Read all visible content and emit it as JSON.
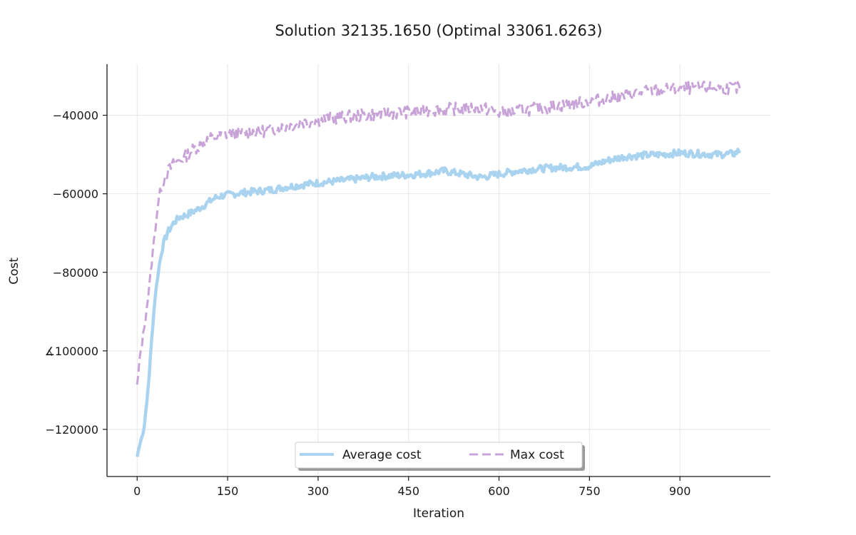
{
  "chart_data": {
    "type": "line",
    "title": "Solution 32135.1650 (Optimal 33061.6263)",
    "xlabel": "Iteration",
    "ylabel": "Cost",
    "xlim": [
      -50,
      1050
    ],
    "ylim": [
      -132000,
      -27000
    ],
    "xticks": [
      0,
      150,
      300,
      450,
      600,
      750,
      900
    ],
    "yticks": [
      -120000,
      -100000,
      -80000,
      -60000,
      -40000
    ],
    "ytick_labels": [
      "−120000",
      "∡100000",
      "−80000",
      "−60000",
      "−40000"
    ],
    "grid": true,
    "legend_position": "bottom-center",
    "colors": {
      "average": "#a9d3ef",
      "max": "#c8a3d8"
    },
    "series": [
      {
        "name": "Average cost",
        "style": "solid",
        "x": [
          0,
          5,
          10,
          15,
          20,
          25,
          30,
          35,
          40,
          45,
          50,
          60,
          70,
          80,
          90,
          100,
          110,
          120,
          130,
          140,
          150,
          170,
          190,
          210,
          230,
          250,
          270,
          300,
          330,
          360,
          390,
          420,
          450,
          480,
          510,
          540,
          570,
          600,
          630,
          660,
          690,
          720,
          750,
          780,
          810,
          840,
          870,
          900,
          930,
          960,
          990,
          1000
        ],
        "y": [
          -127000,
          -123000,
          -121000,
          -115000,
          -106000,
          -95000,
          -86000,
          -80000,
          -75000,
          -72000,
          -70000,
          -67500,
          -66000,
          -65500,
          -64800,
          -64000,
          -63000,
          -62000,
          -61000,
          -60500,
          -60300,
          -59800,
          -59500,
          -59200,
          -58800,
          -58200,
          -57800,
          -57200,
          -56800,
          -56300,
          -55700,
          -55400,
          -55200,
          -54800,
          -54200,
          -55000,
          -55800,
          -55000,
          -54200,
          -53700,
          -53400,
          -53200,
          -53000,
          -51500,
          -50500,
          -50200,
          -50000,
          -49600,
          -49800,
          -50000,
          -49800,
          -48800
        ]
      },
      {
        "name": "Max cost",
        "style": "dashed",
        "x": [
          0,
          5,
          10,
          15,
          20,
          25,
          30,
          35,
          40,
          45,
          50,
          60,
          70,
          80,
          90,
          100,
          110,
          120,
          130,
          140,
          150,
          170,
          190,
          210,
          230,
          250,
          270,
          300,
          330,
          360,
          390,
          420,
          450,
          480,
          510,
          540,
          570,
          600,
          630,
          660,
          690,
          720,
          750,
          780,
          810,
          840,
          870,
          900,
          930,
          960,
          990,
          1000
        ],
        "y": [
          -109000,
          -101000,
          -96000,
          -90000,
          -84000,
          -76000,
          -69000,
          -62000,
          -58000,
          -56000,
          -54500,
          -52500,
          -51500,
          -50500,
          -49000,
          -48000,
          -47000,
          -46000,
          -45500,
          -45000,
          -44800,
          -44500,
          -44200,
          -44000,
          -43500,
          -42700,
          -42000,
          -41200,
          -40700,
          -40200,
          -39800,
          -39500,
          -39200,
          -38800,
          -38500,
          -38300,
          -38000,
          -39500,
          -39000,
          -38300,
          -37800,
          -37200,
          -36500,
          -35800,
          -35000,
          -34000,
          -33500,
          -33200,
          -33000,
          -33000,
          -33100,
          -33200
        ]
      }
    ]
  }
}
